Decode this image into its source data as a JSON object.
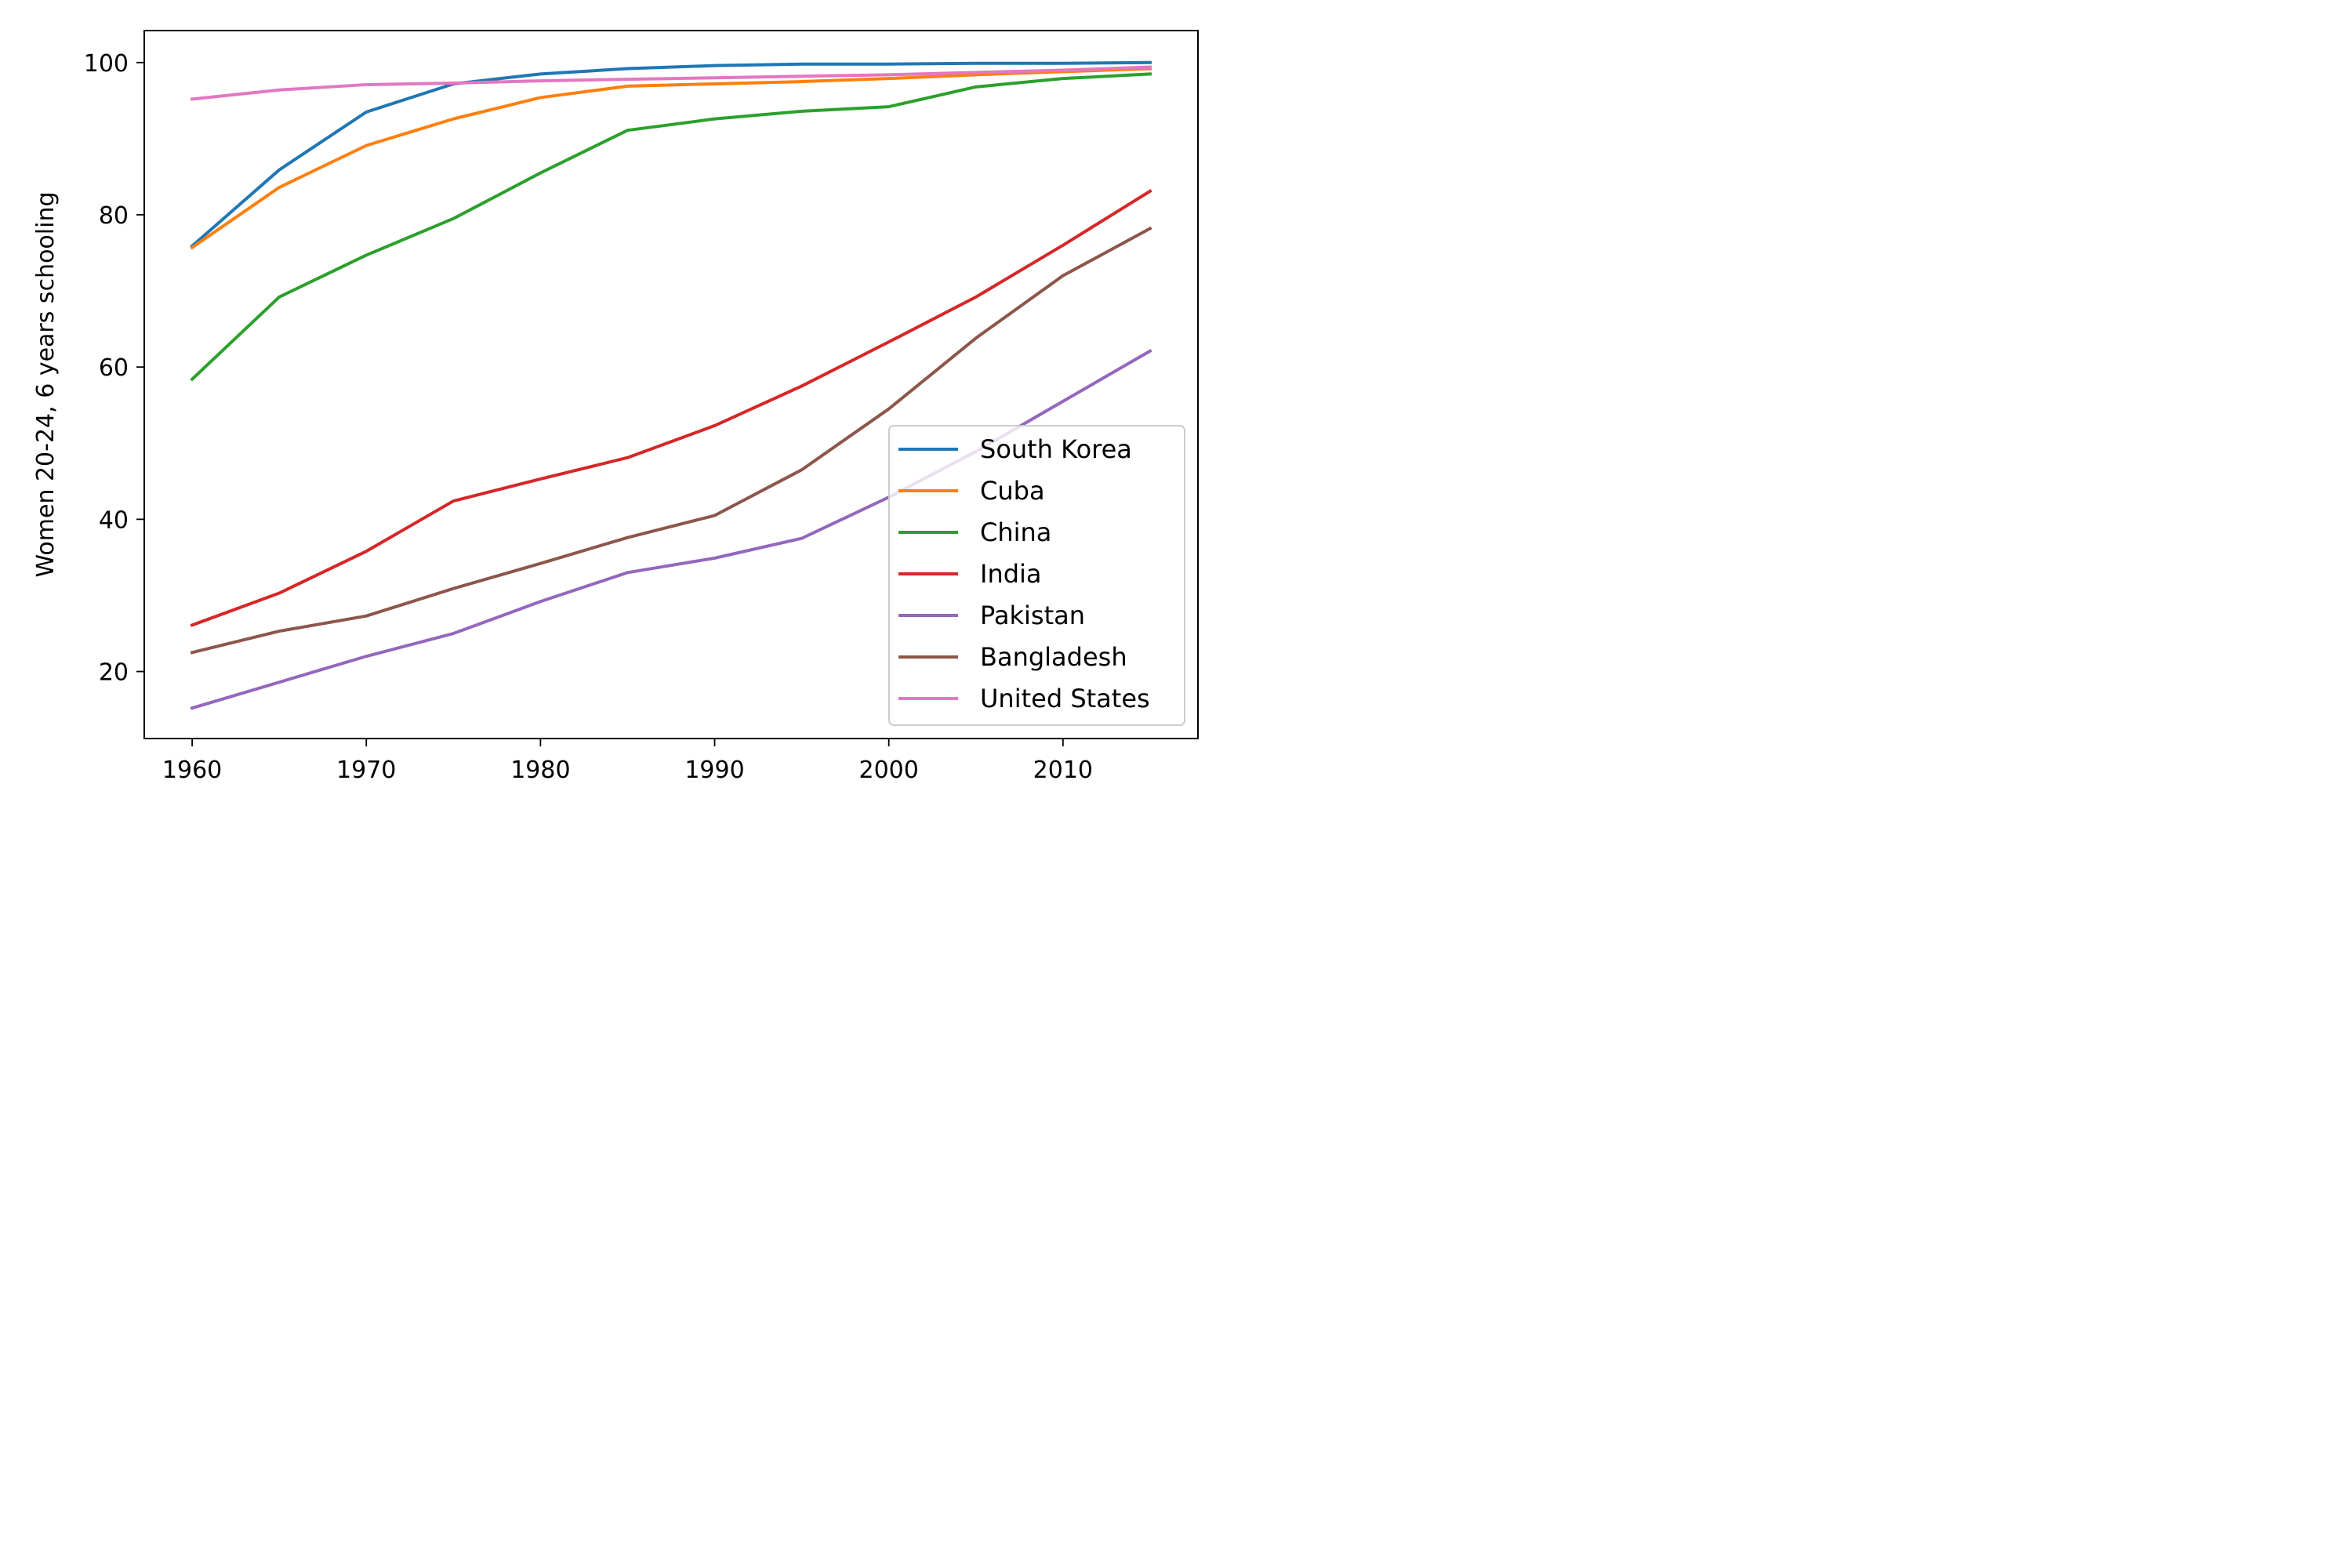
{
  "chart_data": {
    "type": "line",
    "title": "",
    "xlabel": "",
    "ylabel": "Women 20-24, 6 years schooling",
    "xlim": [
      1957.25,
      2017.75
    ],
    "ylim": [
      11.2,
      104.2
    ],
    "xticks": [
      1960,
      1970,
      1980,
      1990,
      2000,
      2010
    ],
    "yticks": [
      20,
      40,
      60,
      80,
      100
    ],
    "grid": false,
    "legend_position": "lower right",
    "x": [
      1960,
      1965,
      1970,
      1975,
      1980,
      1985,
      1990,
      1995,
      2000,
      2005,
      2010,
      2015
    ],
    "series": [
      {
        "name": "South Korea",
        "color": "#1f77b4",
        "values": [
          75.9,
          85.9,
          93.5,
          97.2,
          98.5,
          99.2,
          99.6,
          99.8,
          99.8,
          99.9,
          99.9,
          100.0
        ]
      },
      {
        "name": "Cuba",
        "color": "#ff7f0e",
        "values": [
          75.7,
          83.6,
          89.1,
          92.6,
          95.4,
          96.9,
          97.2,
          97.5,
          97.9,
          98.4,
          98.8,
          99.2
        ]
      },
      {
        "name": "China",
        "color": "#2ca02c",
        "values": [
          58.4,
          69.2,
          74.7,
          79.5,
          85.5,
          91.1,
          92.6,
          93.6,
          94.2,
          96.8,
          97.9,
          98.5
        ]
      },
      {
        "name": "India",
        "color": "#d62728",
        "values": [
          26.1,
          30.3,
          35.8,
          42.4,
          45.3,
          48.1,
          52.3,
          57.5,
          63.3,
          69.2,
          76.0,
          83.1
        ]
      },
      {
        "name": "Pakistan",
        "color": "#9467bd",
        "values": [
          15.2,
          18.6,
          22.0,
          25.0,
          29.2,
          33.0,
          34.9,
          37.5,
          42.9,
          48.9,
          55.5,
          62.1
        ]
      },
      {
        "name": "Bangladesh",
        "color": "#8c564b",
        "values": [
          22.5,
          25.3,
          27.3,
          30.9,
          34.2,
          37.6,
          40.5,
          46.5,
          54.5,
          63.8,
          72.0,
          78.2
        ]
      },
      {
        "name": "United States",
        "color": "#e377c2",
        "values": [
          95.2,
          96.4,
          97.1,
          97.3,
          97.6,
          97.8,
          98.0,
          98.2,
          98.4,
          98.7,
          99.0,
          99.4
        ]
      }
    ]
  }
}
